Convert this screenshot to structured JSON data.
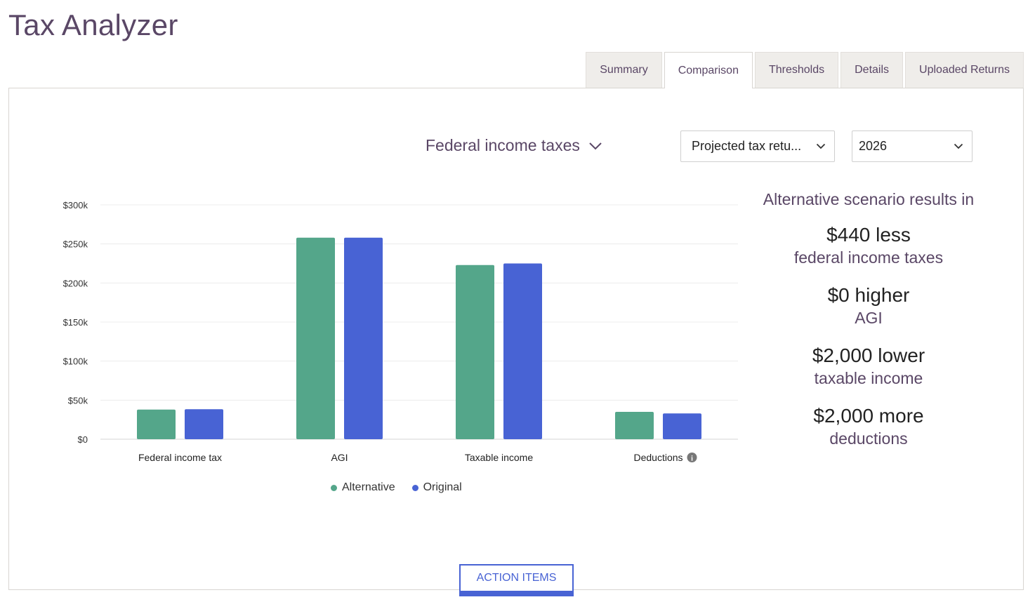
{
  "app": {
    "title": "Tax Analyzer"
  },
  "tabs": [
    {
      "label": "Summary",
      "active": false
    },
    {
      "label": "Comparison",
      "active": true
    },
    {
      "label": "Thresholds",
      "active": false
    },
    {
      "label": "Details",
      "active": false
    },
    {
      "label": "Uploaded Returns",
      "active": false
    }
  ],
  "controls": {
    "metric_label": "Federal income taxes",
    "scenario_select": "Projected tax retu...",
    "year_select": "2026"
  },
  "summary": {
    "heading": "Alternative scenario results in",
    "results": [
      {
        "value": "$440 less",
        "label": "federal income taxes"
      },
      {
        "value": "$0 higher",
        "label": "AGI"
      },
      {
        "value": "$2,000 lower",
        "label": "taxable income"
      },
      {
        "value": "$2,000 more",
        "label": "deductions"
      }
    ]
  },
  "chart_data": {
    "type": "bar",
    "categories": [
      "Federal income tax",
      "AGI",
      "Taxable income",
      "Deductions"
    ],
    "series": [
      {
        "name": "Alternative",
        "color": "#54a68a",
        "values": [
          38000,
          258000,
          223000,
          35000
        ]
      },
      {
        "name": "Original",
        "color": "#4863d4",
        "values": [
          38440,
          258000,
          225000,
          33000
        ]
      }
    ],
    "yticks": [
      "$0",
      "$50k",
      "$100k",
      "$150k",
      "$200k",
      "$250k",
      "$300k"
    ],
    "ylim": [
      0,
      300000
    ],
    "grid": true,
    "legend": "bottom-center",
    "info_icon_on": "Deductions"
  },
  "actions": {
    "action_items_label": "ACTION ITEMS"
  },
  "colors": {
    "accent": "#4863d4",
    "title": "#5a4766",
    "alternative": "#54a68a",
    "original": "#4863d4"
  }
}
